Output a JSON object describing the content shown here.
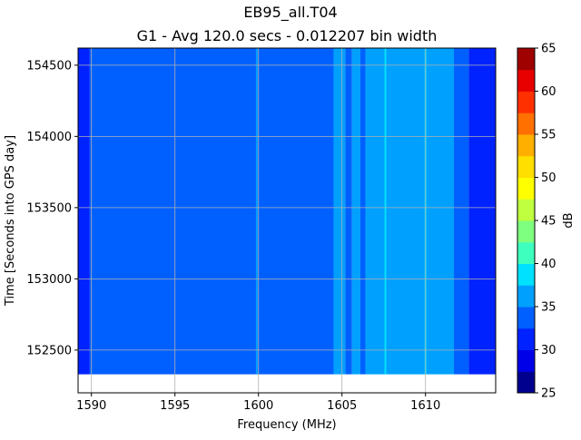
{
  "chart_data": {
    "type": "heatmap",
    "title": "EB95_all.T04",
    "subtitle": "G1 - Avg 120.0 secs - 0.012207 bin width",
    "xlabel": "Frequency (MHz)",
    "ylabel": "Time [Seconds into GPS day]",
    "xlim": [
      1589.2,
      1614.2
    ],
    "ylim": [
      152200,
      154620
    ],
    "data_extent_y": [
      152330,
      154620
    ],
    "x_ticks": [
      1590,
      1595,
      1600,
      1605,
      1610
    ],
    "y_ticks": [
      152500,
      153000,
      153500,
      154000,
      154500
    ],
    "grid": true,
    "colorbar": {
      "label": "dB",
      "range": [
        25,
        65
      ],
      "ticks": [
        25,
        30,
        35,
        40,
        45,
        50,
        55,
        60,
        65
      ],
      "levels": [
        {
          "from": 25.0,
          "to": 27.5,
          "color": "#00008f"
        },
        {
          "from": 27.5,
          "to": 30.0,
          "color": "#0000e8"
        },
        {
          "from": 30.0,
          "to": 32.5,
          "color": "#0022ff"
        },
        {
          "from": 32.5,
          "to": 35.0,
          "color": "#0060ff"
        },
        {
          "from": 35.0,
          "to": 37.5,
          "color": "#00a0ff"
        },
        {
          "from": 37.5,
          "to": 40.0,
          "color": "#00e0ff"
        },
        {
          "from": 40.0,
          "to": 42.5,
          "color": "#3fffbf"
        },
        {
          "from": 42.5,
          "to": 45.0,
          "color": "#7fff7f"
        },
        {
          "from": 45.0,
          "to": 47.5,
          "color": "#bfff3f"
        },
        {
          "from": 47.5,
          "to": 50.0,
          "color": "#ffff00"
        },
        {
          "from": 50.0,
          "to": 52.5,
          "color": "#ffdf00"
        },
        {
          "from": 52.5,
          "to": 55.0,
          "color": "#ffaf00"
        },
        {
          "from": 55.0,
          "to": 57.5,
          "color": "#ff7000"
        },
        {
          "from": 57.5,
          "to": 60.0,
          "color": "#ff3000"
        },
        {
          "from": 60.0,
          "to": 62.5,
          "color": "#e80000"
        },
        {
          "from": 62.5,
          "to": 65.0,
          "color": "#9f0000"
        }
      ]
    },
    "frequency_bands": [
      {
        "from": 1589.2,
        "to": 1589.9,
        "level_db": 31
      },
      {
        "from": 1589.9,
        "to": 1604.5,
        "level_db": 33
      },
      {
        "from": 1604.5,
        "to": 1605.2,
        "level_db": 36
      },
      {
        "from": 1605.2,
        "to": 1605.6,
        "level_db": 33
      },
      {
        "from": 1605.6,
        "to": 1606.1,
        "level_db": 36
      },
      {
        "from": 1606.1,
        "to": 1606.4,
        "level_db": 33
      },
      {
        "from": 1606.4,
        "to": 1611.7,
        "level_db": 36
      },
      {
        "from": 1611.7,
        "to": 1612.6,
        "level_db": 33
      },
      {
        "from": 1612.6,
        "to": 1614.2,
        "level_db": 31
      }
    ],
    "spectral_lines": [
      {
        "freq": 1599.9,
        "level_db": 36
      },
      {
        "freq": 1607.6,
        "level_db": 38
      },
      {
        "freq": 1610.0,
        "level_db": 38
      }
    ]
  }
}
